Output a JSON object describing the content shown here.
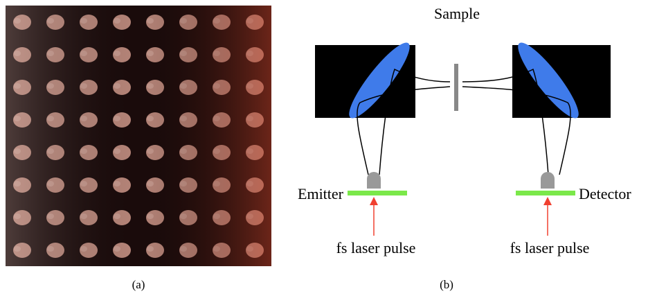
{
  "panel_a": {
    "caption": "(a)"
  },
  "panel_b": {
    "caption": "(b)",
    "sample_label": "Sample",
    "emitter_label": "Emitter",
    "detector_label": "Detector",
    "emitter_pulse_label": "fs laser pulse",
    "detector_pulse_label": "fs laser pulse"
  }
}
